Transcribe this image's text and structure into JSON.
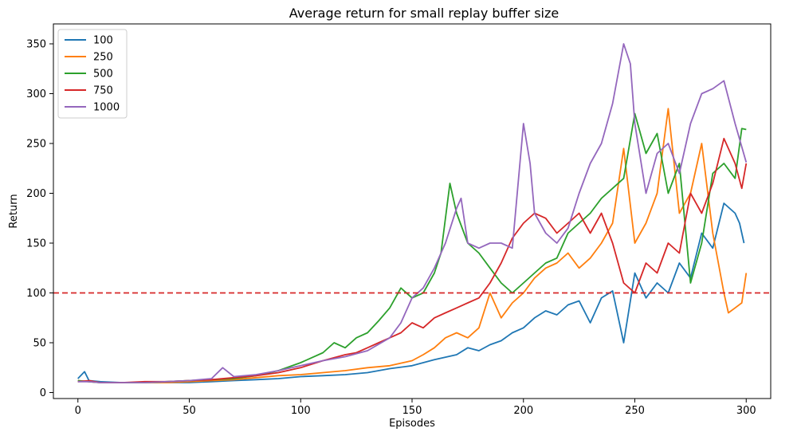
{
  "chart_data": {
    "type": "line",
    "title": "Average return for small replay buffer size",
    "xlabel": "Episodes",
    "ylabel": "Return",
    "xlim": [
      -11,
      311
    ],
    "ylim": [
      -6,
      370
    ],
    "xticks": [
      0,
      50,
      100,
      150,
      200,
      250,
      300
    ],
    "yticks": [
      0,
      50,
      100,
      150,
      200,
      250,
      300,
      350
    ],
    "grid": false,
    "legend_position": "top-left",
    "hline": {
      "y": 100,
      "color": "#d62728",
      "style": "dashed"
    },
    "series": [
      {
        "name": "100",
        "color": "#1f77b4",
        "points": [
          [
            0,
            14
          ],
          [
            3,
            21
          ],
          [
            5,
            12
          ],
          [
            10,
            11
          ],
          [
            20,
            10
          ],
          [
            30,
            10
          ],
          [
            40,
            10
          ],
          [
            50,
            10
          ],
          [
            60,
            11
          ],
          [
            70,
            12
          ],
          [
            80,
            13
          ],
          [
            90,
            14
          ],
          [
            100,
            16
          ],
          [
            110,
            17
          ],
          [
            120,
            18
          ],
          [
            130,
            20
          ],
          [
            140,
            24
          ],
          [
            150,
            27
          ],
          [
            160,
            33
          ],
          [
            170,
            38
          ],
          [
            175,
            45
          ],
          [
            180,
            42
          ],
          [
            185,
            48
          ],
          [
            190,
            52
          ],
          [
            195,
            60
          ],
          [
            200,
            65
          ],
          [
            205,
            75
          ],
          [
            210,
            82
          ],
          [
            215,
            78
          ],
          [
            220,
            88
          ],
          [
            225,
            92
          ],
          [
            230,
            70
          ],
          [
            235,
            95
          ],
          [
            240,
            102
          ],
          [
            245,
            50
          ],
          [
            250,
            120
          ],
          [
            255,
            95
          ],
          [
            260,
            110
          ],
          [
            265,
            100
          ],
          [
            270,
            130
          ],
          [
            275,
            115
          ],
          [
            280,
            160
          ],
          [
            285,
            145
          ],
          [
            290,
            190
          ],
          [
            295,
            180
          ],
          [
            297,
            170
          ],
          [
            299,
            150
          ]
        ]
      },
      {
        "name": "250",
        "color": "#ff7f0e",
        "points": [
          [
            0,
            12
          ],
          [
            5,
            11
          ],
          [
            10,
            10
          ],
          [
            20,
            10
          ],
          [
            30,
            10
          ],
          [
            40,
            10
          ],
          [
            50,
            11
          ],
          [
            60,
            12
          ],
          [
            70,
            13
          ],
          [
            80,
            15
          ],
          [
            90,
            17
          ],
          [
            100,
            18
          ],
          [
            110,
            20
          ],
          [
            120,
            22
          ],
          [
            130,
            25
          ],
          [
            140,
            27
          ],
          [
            150,
            32
          ],
          [
            155,
            38
          ],
          [
            160,
            45
          ],
          [
            165,
            55
          ],
          [
            170,
            60
          ],
          [
            175,
            55
          ],
          [
            180,
            65
          ],
          [
            185,
            100
          ],
          [
            190,
            75
          ],
          [
            195,
            90
          ],
          [
            200,
            100
          ],
          [
            205,
            115
          ],
          [
            210,
            125
          ],
          [
            215,
            130
          ],
          [
            220,
            140
          ],
          [
            225,
            125
          ],
          [
            230,
            135
          ],
          [
            235,
            150
          ],
          [
            240,
            170
          ],
          [
            245,
            245
          ],
          [
            250,
            150
          ],
          [
            255,
            170
          ],
          [
            260,
            200
          ],
          [
            265,
            285
          ],
          [
            270,
            180
          ],
          [
            275,
            200
          ],
          [
            280,
            250
          ],
          [
            285,
            160
          ],
          [
            290,
            100
          ],
          [
            292,
            80
          ],
          [
            295,
            85
          ],
          [
            298,
            90
          ],
          [
            300,
            120
          ]
        ]
      },
      {
        "name": "500",
        "color": "#2ca02c",
        "points": [
          [
            0,
            12
          ],
          [
            5,
            11
          ],
          [
            10,
            10
          ],
          [
            20,
            10
          ],
          [
            30,
            10
          ],
          [
            40,
            11
          ],
          [
            50,
            12
          ],
          [
            60,
            13
          ],
          [
            70,
            14
          ],
          [
            80,
            17
          ],
          [
            90,
            22
          ],
          [
            100,
            30
          ],
          [
            110,
            40
          ],
          [
            115,
            50
          ],
          [
            120,
            45
          ],
          [
            125,
            55
          ],
          [
            130,
            60
          ],
          [
            135,
            72
          ],
          [
            140,
            85
          ],
          [
            145,
            105
          ],
          [
            150,
            95
          ],
          [
            155,
            100
          ],
          [
            160,
            120
          ],
          [
            163,
            140
          ],
          [
            167,
            210
          ],
          [
            170,
            180
          ],
          [
            175,
            150
          ],
          [
            180,
            140
          ],
          [
            185,
            125
          ],
          [
            190,
            110
          ],
          [
            195,
            100
          ],
          [
            200,
            110
          ],
          [
            205,
            120
          ],
          [
            210,
            130
          ],
          [
            215,
            135
          ],
          [
            220,
            160
          ],
          [
            225,
            170
          ],
          [
            230,
            180
          ],
          [
            235,
            195
          ],
          [
            240,
            205
          ],
          [
            245,
            215
          ],
          [
            250,
            280
          ],
          [
            255,
            240
          ],
          [
            260,
            260
          ],
          [
            265,
            200
          ],
          [
            270,
            230
          ],
          [
            275,
            110
          ],
          [
            280,
            150
          ],
          [
            285,
            220
          ],
          [
            290,
            230
          ],
          [
            295,
            215
          ],
          [
            298,
            265
          ],
          [
            300,
            264
          ]
        ]
      },
      {
        "name": "750",
        "color": "#d62728",
        "points": [
          [
            0,
            11
          ],
          [
            5,
            12
          ],
          [
            10,
            10
          ],
          [
            20,
            10
          ],
          [
            30,
            11
          ],
          [
            40,
            11
          ],
          [
            50,
            12
          ],
          [
            60,
            13
          ],
          [
            70,
            15
          ],
          [
            80,
            17
          ],
          [
            90,
            20
          ],
          [
            100,
            25
          ],
          [
            110,
            32
          ],
          [
            120,
            38
          ],
          [
            125,
            40
          ],
          [
            130,
            45
          ],
          [
            135,
            50
          ],
          [
            140,
            55
          ],
          [
            145,
            60
          ],
          [
            150,
            70
          ],
          [
            155,
            65
          ],
          [
            160,
            75
          ],
          [
            165,
            80
          ],
          [
            170,
            85
          ],
          [
            175,
            90
          ],
          [
            180,
            95
          ],
          [
            185,
            110
          ],
          [
            190,
            130
          ],
          [
            195,
            155
          ],
          [
            200,
            170
          ],
          [
            205,
            180
          ],
          [
            210,
            175
          ],
          [
            215,
            160
          ],
          [
            220,
            170
          ],
          [
            225,
            180
          ],
          [
            230,
            160
          ],
          [
            235,
            180
          ],
          [
            240,
            150
          ],
          [
            245,
            110
          ],
          [
            250,
            100
          ],
          [
            255,
            130
          ],
          [
            260,
            120
          ],
          [
            265,
            150
          ],
          [
            270,
            140
          ],
          [
            275,
            200
          ],
          [
            280,
            180
          ],
          [
            285,
            210
          ],
          [
            290,
            255
          ],
          [
            295,
            230
          ],
          [
            298,
            205
          ],
          [
            300,
            230
          ]
        ]
      },
      {
        "name": "1000",
        "color": "#9467bd",
        "points": [
          [
            0,
            11
          ],
          [
            5,
            11
          ],
          [
            10,
            10
          ],
          [
            20,
            10
          ],
          [
            30,
            10
          ],
          [
            40,
            11
          ],
          [
            50,
            12
          ],
          [
            60,
            14
          ],
          [
            65,
            25
          ],
          [
            70,
            16
          ],
          [
            80,
            18
          ],
          [
            90,
            22
          ],
          [
            100,
            27
          ],
          [
            110,
            32
          ],
          [
            120,
            36
          ],
          [
            130,
            42
          ],
          [
            140,
            55
          ],
          [
            145,
            70
          ],
          [
            150,
            95
          ],
          [
            155,
            105
          ],
          [
            160,
            125
          ],
          [
            165,
            150
          ],
          [
            170,
            185
          ],
          [
            172,
            195
          ],
          [
            175,
            150
          ],
          [
            180,
            145
          ],
          [
            185,
            150
          ],
          [
            190,
            150
          ],
          [
            195,
            145
          ],
          [
            200,
            270
          ],
          [
            203,
            230
          ],
          [
            205,
            180
          ],
          [
            210,
            160
          ],
          [
            215,
            150
          ],
          [
            220,
            165
          ],
          [
            225,
            200
          ],
          [
            230,
            230
          ],
          [
            235,
            250
          ],
          [
            240,
            290
          ],
          [
            245,
            350
          ],
          [
            248,
            330
          ],
          [
            250,
            270
          ],
          [
            255,
            200
          ],
          [
            260,
            240
          ],
          [
            265,
            250
          ],
          [
            270,
            220
          ],
          [
            275,
            270
          ],
          [
            280,
            300
          ],
          [
            285,
            305
          ],
          [
            290,
            313
          ],
          [
            295,
            270
          ],
          [
            300,
            231
          ]
        ]
      }
    ]
  }
}
